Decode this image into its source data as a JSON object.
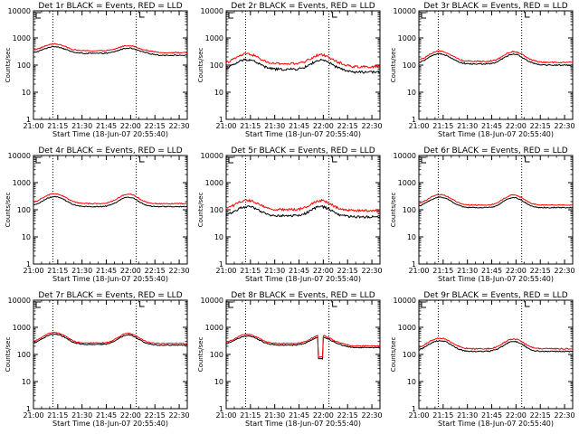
{
  "chart_data": {
    "type": "line",
    "colors": {
      "events": "#000000",
      "lld": "#ff0000"
    },
    "x_tick_labels": [
      "21:00",
      "21:15",
      "21:30",
      "21:45",
      "22:00",
      "22:15",
      "22:30"
    ],
    "x_range_minutes": [
      0,
      95
    ],
    "y_tick_labels": [
      "1",
      "10",
      "100",
      "1000",
      "10000"
    ],
    "ylim": [
      1,
      10000
    ],
    "yscale": "log",
    "ylabel": "Counts/sec",
    "xlabel": "Start Time (18-Jun-07 20:55:40)",
    "marker_times_minutes": [
      12.0,
      63.5
    ],
    "panels": [
      {
        "title": "Det 1r BLACK = Events, RED = LLD",
        "base": 270,
        "peak1": 480,
        "peak2": 420,
        "tail": 230,
        "lld_ratio": 1.25,
        "noise": 0.04
      },
      {
        "title": "Det 2r BLACK = Events, RED = LLD",
        "base": 70,
        "peak1": 160,
        "peak2": 150,
        "tail": 55,
        "lld_ratio": 1.6,
        "noise": 0.1
      },
      {
        "title": "Det 3r BLACK = Events, RED = LLD",
        "base": 110,
        "peak1": 260,
        "peak2": 250,
        "tail": 100,
        "lld_ratio": 1.25,
        "noise": 0.05
      },
      {
        "title": "Det 4r BLACK = Events, RED = LLD",
        "base": 130,
        "peak1": 300,
        "peak2": 290,
        "tail": 130,
        "lld_ratio": 1.3,
        "noise": 0.04
      },
      {
        "title": "Det 5r BLACK = Events, RED = LLD",
        "base": 60,
        "peak1": 130,
        "peak2": 130,
        "tail": 55,
        "lld_ratio": 1.7,
        "noise": 0.1
      },
      {
        "title": "Det 6r BLACK = Events, RED = LLD",
        "base": 120,
        "peak1": 290,
        "peak2": 280,
        "tail": 120,
        "lld_ratio": 1.25,
        "noise": 0.04
      },
      {
        "title": "Det 7r BLACK = Events, RED = LLD",
        "base": 230,
        "peak1": 560,
        "peak2": 520,
        "tail": 220,
        "lld_ratio": 1.15,
        "noise": 0.04
      },
      {
        "title": "Det 8r BLACK = Events, RED = LLD",
        "base": 220,
        "peak1": 480,
        "peak2": 440,
        "tail": 180,
        "lld_ratio": 1.15,
        "noise": 0.04,
        "dip": {
          "start_minute": 57.0,
          "end_minute": 59.5,
          "value": 70
        }
      },
      {
        "title": "Det 9r BLACK = Events, RED = LLD",
        "base": 130,
        "peak1": 320,
        "peak2": 300,
        "tail": 130,
        "lld_ratio": 1.25,
        "noise": 0.05
      }
    ]
  }
}
